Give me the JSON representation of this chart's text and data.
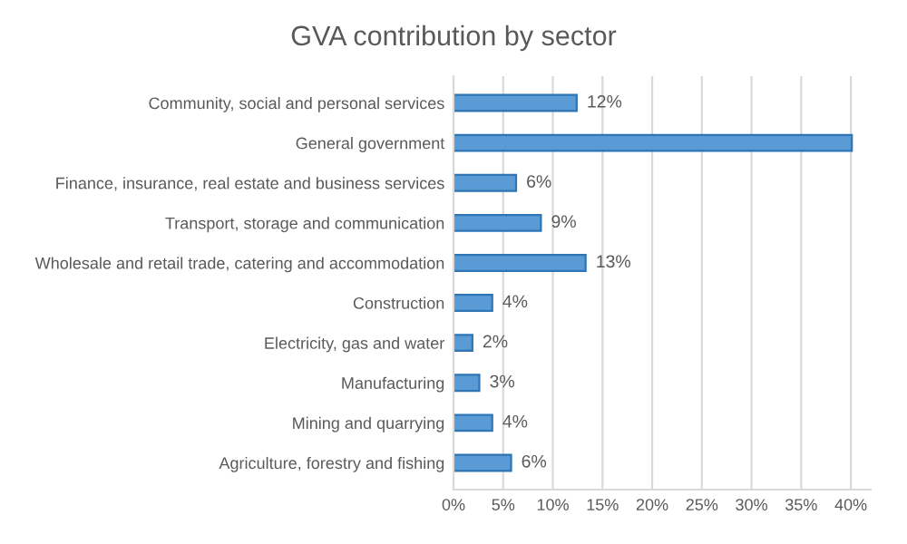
{
  "chart_data": {
    "type": "bar",
    "orientation": "horizontal",
    "title": "GVA contribution by sector",
    "categories": [
      "Community, social and personal services",
      "General government",
      "Finance, insurance, real estate and business services",
      "Transport, storage and communication",
      "Wholesale and retail trade, catering and accommodation",
      "Construction",
      "Electricity, gas and water",
      "Manufacturing",
      "Mining and quarrying",
      "Agriculture, forestry and fishing"
    ],
    "values": [
      12.4,
      40.1,
      6.3,
      8.8,
      13.3,
      3.9,
      1.9,
      2.6,
      3.9,
      5.8
    ],
    "value_labels": [
      "12%",
      null,
      "6%",
      "9%",
      "13%",
      "4%",
      "2%",
      "3%",
      "4%",
      "6%"
    ],
    "color": "#5b9bd5",
    "xlim": [
      0,
      42
    ],
    "xticks": [
      {
        "value": 0,
        "label": "0%"
      },
      {
        "value": 5,
        "label": "5%"
      },
      {
        "value": 10,
        "label": "10%"
      },
      {
        "value": 15,
        "label": "15%"
      },
      {
        "value": 20,
        "label": "20%"
      },
      {
        "value": 25,
        "label": "25%"
      },
      {
        "value": 30,
        "label": "30%"
      },
      {
        "value": 35,
        "label": "35%"
      },
      {
        "value": 40,
        "label": "40%"
      }
    ],
    "grid": "x"
  }
}
